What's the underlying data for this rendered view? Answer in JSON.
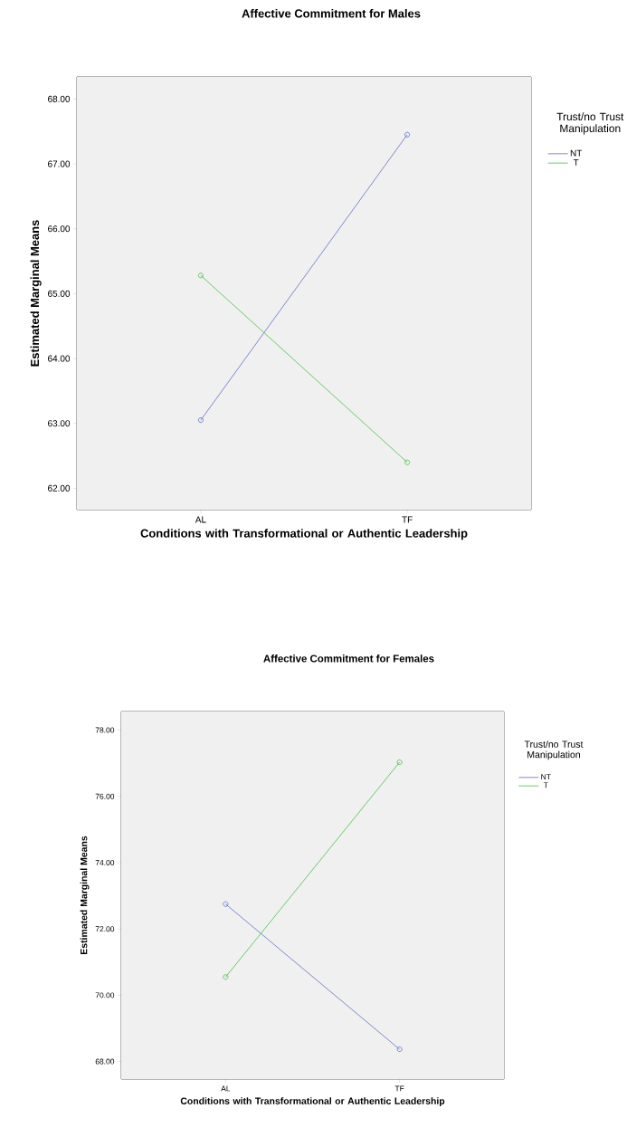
{
  "chart_data": [
    {
      "type": "line",
      "title": "Affective Commitment for Males",
      "xlabel": "Conditions with Transformational or Authentic Leadership",
      "ylabel": "Estimated Marginal Means",
      "legend_title": "Trust/no Trust Manipulation",
      "categories": [
        "AL",
        "TF"
      ],
      "series": [
        {
          "name": "NT",
          "color": "#5f6fc7",
          "values": [
            63.05,
            67.45
          ]
        },
        {
          "name": "T",
          "color": "#44c244",
          "values": [
            65.28,
            62.4
          ]
        }
      ],
      "ylim": [
        61.67,
        68.34
      ],
      "yticks": [
        {
          "value": 62,
          "label": "62.00"
        },
        {
          "value": 63,
          "label": "63.00"
        },
        {
          "value": 64,
          "label": "64.00"
        },
        {
          "value": 65,
          "label": "65.00"
        },
        {
          "value": 66,
          "label": "66.00"
        },
        {
          "value": 67,
          "label": "67.00"
        },
        {
          "value": 68,
          "label": "68.00"
        }
      ],
      "legend": "right",
      "marker": "circle",
      "line_style": "solid"
    },
    {
      "type": "line",
      "title": "Affective Commitment for Females",
      "xlabel": "Conditions with Transformational or Authentic Leadership",
      "ylabel": "Estimated Marginal Means",
      "legend_title": "Trust/no Trust Manipulation",
      "categories": [
        "AL",
        "TF"
      ],
      "series": [
        {
          "name": "NT",
          "color": "#5f6fc7",
          "values": [
            72.75,
            68.37
          ]
        },
        {
          "name": "T",
          "color": "#44c244",
          "values": [
            70.55,
            77.03
          ]
        }
      ],
      "ylim": [
        67.47,
        78.56
      ],
      "yticks": [
        {
          "value": 68,
          "label": "68.00"
        },
        {
          "value": 70,
          "label": "70.00"
        },
        {
          "value": 72,
          "label": "72.00"
        },
        {
          "value": 74,
          "label": "74.00"
        },
        {
          "value": 76,
          "label": "76.00"
        },
        {
          "value": 78,
          "label": "78.00"
        }
      ],
      "legend": "right",
      "marker": "circle",
      "line_style": "solid"
    }
  ]
}
